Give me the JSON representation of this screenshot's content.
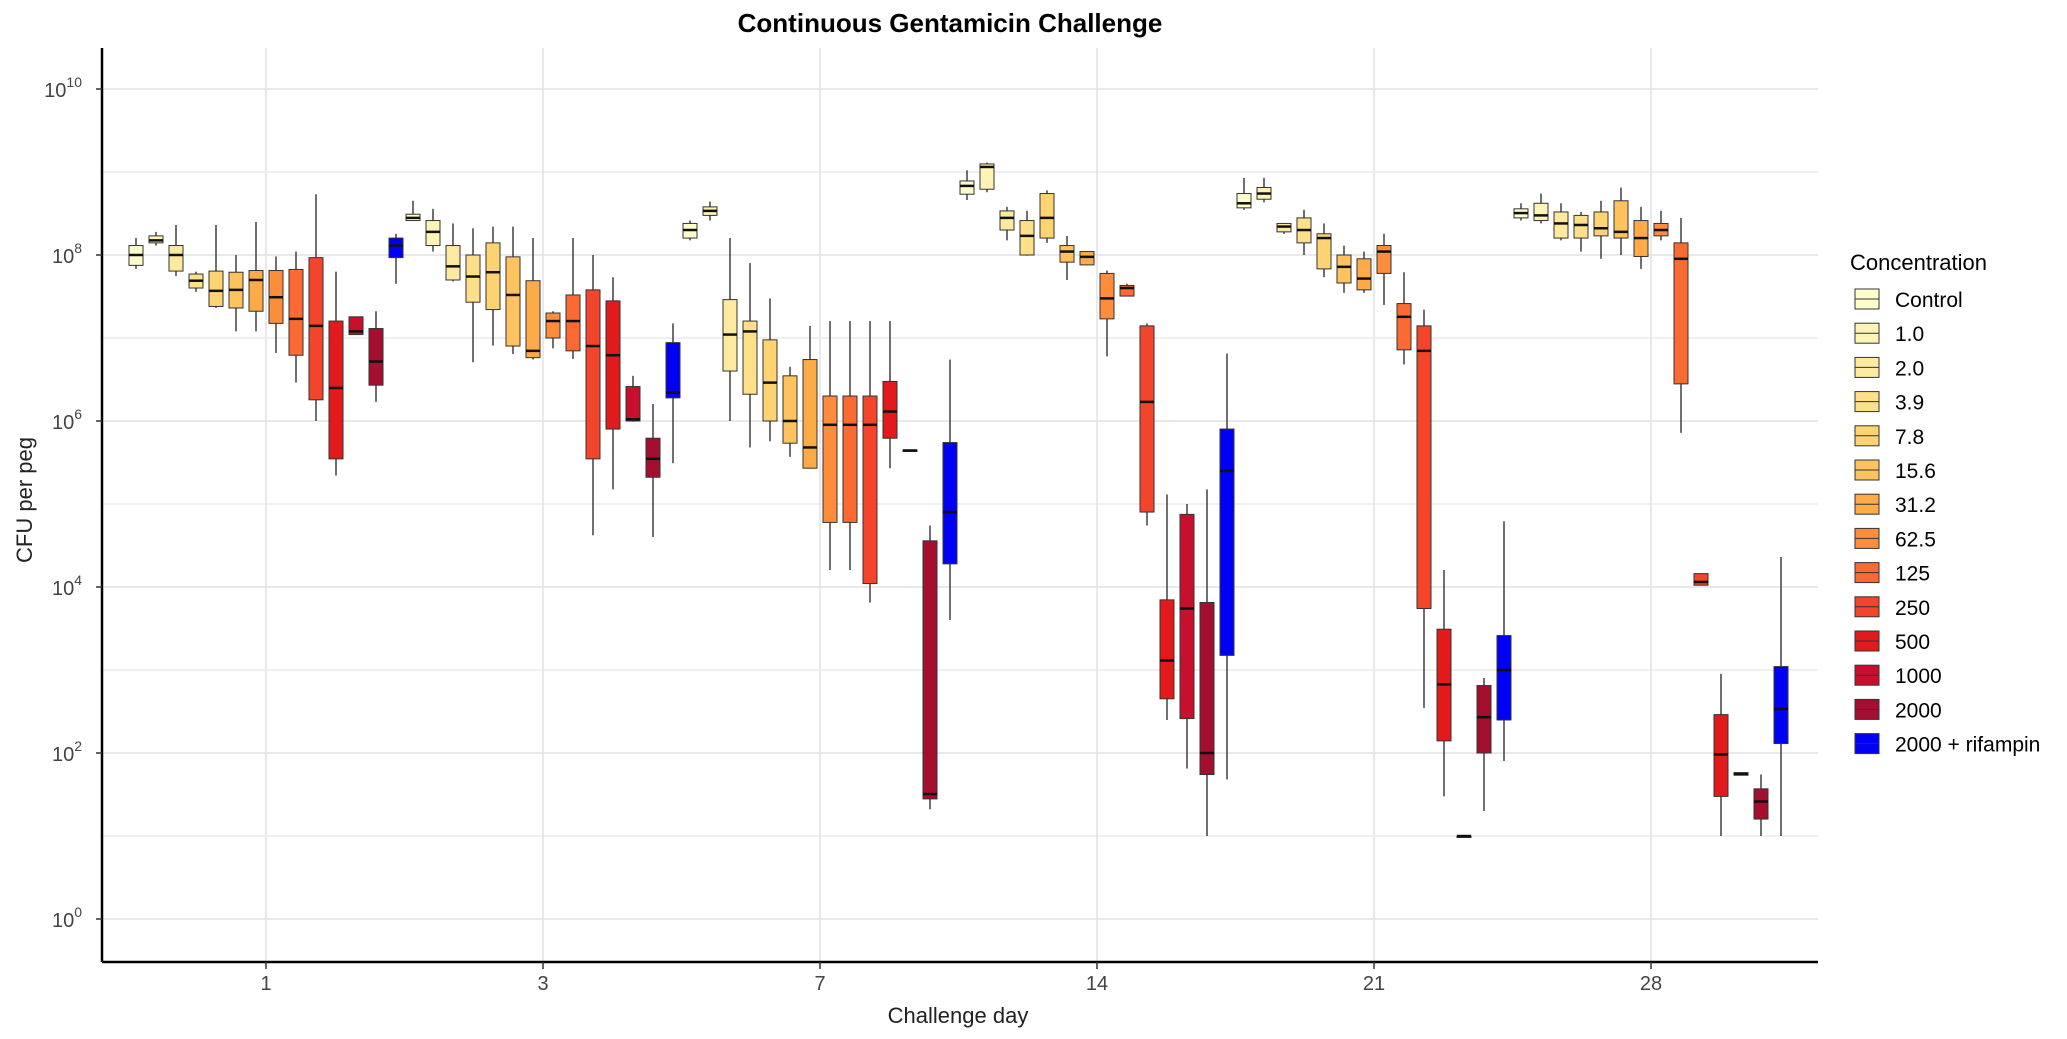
{
  "chart_data": {
    "type": "box",
    "title": "Continuous Gentamicin Challenge",
    "xlabel": "Challenge day",
    "ylabel": "CFU per peg",
    "y_scale": "log10",
    "ylim": [
      1,
      10000000000
    ],
    "y_ticks": [
      {
        "value": 1,
        "base": "10",
        "exp": "0"
      },
      {
        "value": 100,
        "base": "10",
        "exp": "2"
      },
      {
        "value": 10000,
        "base": "10",
        "exp": "4"
      },
      {
        "value": 1000000,
        "base": "10",
        "exp": "6"
      },
      {
        "value": 100000000,
        "base": "10",
        "exp": "8"
      },
      {
        "value": 10000000000,
        "base": "10",
        "exp": "10"
      }
    ],
    "categories": [
      "1",
      "3",
      "7",
      "14",
      "21",
      "28"
    ],
    "legend": {
      "title": "Concentration",
      "position": "right"
    },
    "grid": true,
    "series": [
      {
        "name": "Control",
        "color": "#FFFFCC",
        "boxes": [
          {
            "day": "1",
            "min": 68000000.0,
            "q1": 75000000.0,
            "median": 100000000.0,
            "q3": 130000000.0,
            "max": 160000000.0
          },
          {
            "day": "3",
            "min": 260000000.0,
            "q1": 260000000.0,
            "median": 280000000.0,
            "q3": 310000000.0,
            "max": 450000000.0
          },
          {
            "day": "7",
            "min": 150000000.0,
            "q1": 160000000.0,
            "median": 200000000.0,
            "q3": 240000000.0,
            "max": 260000000.0
          },
          {
            "day": "14",
            "min": 460000000.0,
            "q1": 540000000.0,
            "median": 680000000.0,
            "q3": 780000000.0,
            "max": 1050000000.0
          },
          {
            "day": "21",
            "min": 350000000.0,
            "q1": 370000000.0,
            "median": 420000000.0,
            "q3": 550000000.0,
            "max": 850000000.0
          },
          {
            "day": "28",
            "min": 260000000.0,
            "q1": 280000000.0,
            "median": 320000000.0,
            "q3": 360000000.0,
            "max": 420000000.0
          }
        ]
      },
      {
        "name": "1.0",
        "color": "#FFF3B5",
        "boxes": [
          {
            "day": "1",
            "min": 130000000.0,
            "q1": 140000000.0,
            "median": 150000000.0,
            "q3": 170000000.0,
            "max": 190000000.0
          },
          {
            "day": "3",
            "min": 110000000.0,
            "q1": 130000000.0,
            "median": 190000000.0,
            "q3": 260000000.0,
            "max": 360000000.0
          },
          {
            "day": "7",
            "min": 260000000.0,
            "q1": 300000000.0,
            "median": 340000000.0,
            "q3": 380000000.0,
            "max": 440000000.0
          },
          {
            "day": "14",
            "min": 570000000.0,
            "q1": 620000000.0,
            "median": 1150000000.0,
            "q3": 1250000000.0,
            "max": 1300000000.0
          },
          {
            "day": "21",
            "min": 430000000.0,
            "q1": 470000000.0,
            "median": 550000000.0,
            "q3": 650000000.0,
            "max": 850000000.0
          },
          {
            "day": "28",
            "min": 240000000.0,
            "q1": 260000000.0,
            "median": 300000000.0,
            "q3": 420000000.0,
            "max": 550000000.0
          }
        ]
      },
      {
        "name": "2.0",
        "color": "#FEE9A0",
        "boxes": [
          {
            "day": "1",
            "min": 56000000.0,
            "q1": 64000000.0,
            "median": 100000000.0,
            "q3": 130000000.0,
            "max": 230000000.0
          },
          {
            "day": "3",
            "min": 48000000.0,
            "q1": 50000000.0,
            "median": 73000000.0,
            "q3": 130000000.0,
            "max": 240000000.0
          },
          {
            "day": "7",
            "min": 1000000.0,
            "q1": 4000000.0,
            "median": 11000000.0,
            "q3": 29000000.0,
            "max": 160000000.0
          },
          {
            "day": "14",
            "min": 150000000.0,
            "q1": 200000000.0,
            "median": 280000000.0,
            "q3": 340000000.0,
            "max": 380000000.0
          },
          {
            "day": "21",
            "min": 180000000.0,
            "q1": 190000000.0,
            "median": 220000000.0,
            "q3": 240000000.0,
            "max": 240000000.0
          },
          {
            "day": "28",
            "min": 150000000.0,
            "q1": 160000000.0,
            "median": 240000000.0,
            "q3": 330000000.0,
            "max": 420000000.0
          }
        ]
      },
      {
        "name": "3.9",
        "color": "#FEDF8A",
        "boxes": [
          {
            "day": "1",
            "min": 36000000.0,
            "q1": 40000000.0,
            "median": 49000000.0,
            "q3": 59000000.0,
            "max": 63000000.0
          },
          {
            "day": "3",
            "min": 5100000.0,
            "q1": 27000000.0,
            "median": 55000000.0,
            "q3": 100000000.0,
            "max": 210000000.0
          },
          {
            "day": "7",
            "min": 480000.0,
            "q1": 2100000.0,
            "median": 12000000.0,
            "q3": 16000000.0,
            "max": 80000000.0
          },
          {
            "day": "14",
            "min": 98000000.0,
            "q1": 100000000.0,
            "median": 170000000.0,
            "q3": 260000000.0,
            "max": 340000000.0
          },
          {
            "day": "21",
            "min": 100000000.0,
            "q1": 140000000.0,
            "median": 200000000.0,
            "q3": 280000000.0,
            "max": 350000000.0
          },
          {
            "day": "28",
            "min": 110000000.0,
            "q1": 160000000.0,
            "median": 230000000.0,
            "q3": 300000000.0,
            "max": 330000000.0
          }
        ]
      },
      {
        "name": "7.8",
        "color": "#FED472",
        "boxes": [
          {
            "day": "1",
            "min": 23000000.0,
            "q1": 24000000.0,
            "median": 37000000.0,
            "q3": 64000000.0,
            "max": 230000000.0
          },
          {
            "day": "3",
            "min": 8100000.0,
            "q1": 22000000.0,
            "median": 62000000.0,
            "q3": 140000000.0,
            "max": 220000000.0
          },
          {
            "day": "7",
            "min": 570000.0,
            "q1": 1000000.0,
            "median": 2900000.0,
            "q3": 9500000.0,
            "max": 30000000.0
          },
          {
            "day": "14",
            "min": 140000000.0,
            "q1": 160000000.0,
            "median": 280000000.0,
            "q3": 550000000.0,
            "max": 600000000.0
          },
          {
            "day": "21",
            "min": 54000000.0,
            "q1": 68000000.0,
            "median": 160000000.0,
            "q3": 180000000.0,
            "max": 240000000.0
          },
          {
            "day": "28",
            "min": 90000000.0,
            "q1": 170000000.0,
            "median": 210000000.0,
            "q3": 330000000.0,
            "max": 450000000.0
          }
        ]
      },
      {
        "name": "15.6",
        "color": "#FEC35E",
        "boxes": [
          {
            "day": "1",
            "min": 12000000.0,
            "q1": 23000000.0,
            "median": 38000000.0,
            "q3": 62000000.0,
            "max": 100000000.0
          },
          {
            "day": "3",
            "min": 6400000.0,
            "q1": 8000000.0,
            "median": 33000000.0,
            "q3": 95000000.0,
            "max": 220000000.0
          },
          {
            "day": "7",
            "min": 370000.0,
            "q1": 540000.0,
            "median": 1000000.0,
            "q3": 3500000.0,
            "max": 4500000.0
          },
          {
            "day": "14",
            "min": 50000000.0,
            "q1": 82000000.0,
            "median": 110000000.0,
            "q3": 130000000.0,
            "max": 170000000.0
          },
          {
            "day": "21",
            "min": 35000000.0,
            "q1": 46000000.0,
            "median": 72000000.0,
            "q3": 100000000.0,
            "max": 130000000.0
          },
          {
            "day": "28",
            "min": 100000000.0,
            "q1": 160000000.0,
            "median": 190000000.0,
            "q3": 450000000.0,
            "max": 650000000.0
          }
        ]
      },
      {
        "name": "31.2",
        "color": "#FDAB48",
        "boxes": [
          {
            "day": "1",
            "min": 12000000.0,
            "q1": 21000000.0,
            "median": 50000000.0,
            "q3": 65000000.0,
            "max": 250000000.0
          },
          {
            "day": "3",
            "min": 5500000.0,
            "q1": 5800000.0,
            "median": 7000000.0,
            "q3": 49000000.0,
            "max": 160000000.0
          },
          {
            "day": "7",
            "min": 270000.0,
            "q1": 270000.0,
            "median": 480000.0,
            "q3": 5500000.0,
            "max": 14000000.0
          },
          {
            "day": "14",
            "min": 75000000.0,
            "q1": 76000000.0,
            "median": 95000000.0,
            "q3": 110000000.0,
            "max": 110000000.0
          },
          {
            "day": "21",
            "min": 35000000.0,
            "q1": 38000000.0,
            "median": 52000000.0,
            "q3": 90000000.0,
            "max": 110000000.0
          },
          {
            "day": "28",
            "min": 68000000.0,
            "q1": 96000000.0,
            "median": 160000000.0,
            "q3": 260000000.0,
            "max": 380000000.0
          }
        ]
      },
      {
        "name": "62.5",
        "color": "#FD8D3C",
        "boxes": [
          {
            "day": "1",
            "min": 6600000.0,
            "q1": 15000000.0,
            "median": 31000000.0,
            "q3": 65000000.0,
            "max": 96000000.0
          },
          {
            "day": "3",
            "min": 7500000.0,
            "q1": 10000000.0,
            "median": 16000000.0,
            "q3": 20000000.0,
            "max": 21000000.0
          },
          {
            "day": "7",
            "min": 16000.0,
            "q1": 60000.0,
            "median": 900000.0,
            "q3": 2000000.0,
            "max": 16000000.0
          },
          {
            "day": "14",
            "min": 6000000.0,
            "q1": 17000000.0,
            "median": 30000000.0,
            "q3": 60000000.0,
            "max": 65000000.0
          },
          {
            "day": "21",
            "min": 25000000.0,
            "q1": 60000000.0,
            "median": 110000000.0,
            "q3": 130000000.0,
            "max": 180000000.0
          },
          {
            "day": "28",
            "min": 150000000.0,
            "q1": 170000000.0,
            "median": 200000000.0,
            "q3": 240000000.0,
            "max": 340000000.0
          }
        ]
      },
      {
        "name": "125",
        "color": "#FC6A33",
        "boxes": [
          {
            "day": "1",
            "min": 2900000.0,
            "q1": 6200000.0,
            "median": 17000000.0,
            "q3": 67000000.0,
            "max": 110000000.0
          },
          {
            "day": "3",
            "min": 5600000.0,
            "q1": 7000000.0,
            "median": 16000000.0,
            "q3": 33000000.0,
            "max": 160000000.0
          },
          {
            "day": "7",
            "min": 16000.0,
            "q1": 60000.0,
            "median": 900000.0,
            "q3": 2000000.0,
            "max": 16000000.0
          },
          {
            "day": "14",
            "min": 32000000.0,
            "q1": 32000000.0,
            "median": 40000000.0,
            "q3": 43000000.0,
            "max": 45000000.0
          },
          {
            "day": "21",
            "min": 4800000.0,
            "q1": 7200000.0,
            "median": 18000000.0,
            "q3": 26000000.0,
            "max": 62000000.0
          },
          {
            "day": "28",
            "min": 720000.0,
            "q1": 2800000.0,
            "median": 90000000.0,
            "q3": 140000000.0,
            "max": 280000000.0
          }
        ]
      },
      {
        "name": "250",
        "color": "#F3452B",
        "boxes": [
          {
            "day": "1",
            "min": 1000000.0,
            "q1": 1800000.0,
            "median": 14000000.0,
            "q3": 93000000.0,
            "max": 540000000.0
          },
          {
            "day": "3",
            "min": 42000.0,
            "q1": 350000.0,
            "median": 8000000.0,
            "q3": 38000000.0,
            "max": 100000000.0
          },
          {
            "day": "7",
            "min": 6500.0,
            "q1": 11000.0,
            "median": 900000.0,
            "q3": 2000000.0,
            "max": 16000000.0
          },
          {
            "day": "14",
            "min": 55000.0,
            "q1": 80000.0,
            "median": 1700000.0,
            "q3": 14000000.0,
            "max": 15000000.0
          },
          {
            "day": "21",
            "min": 350.0,
            "q1": 5500.0,
            "median": 7000000.0,
            "q3": 14000000.0,
            "max": 22000000.0
          },
          {
            "day": "28",
            "min": 10500.0,
            "q1": 10500.0,
            "median": 11500.0,
            "q3": 14500.0,
            "max": 14500.0
          }
        ]
      },
      {
        "name": "500",
        "color": "#E31A1C",
        "boxes": [
          {
            "day": "1",
            "min": 220000.0,
            "q1": 350000.0,
            "median": 2500000.0,
            "q3": 16000000.0,
            "max": 63000000.0
          },
          {
            "day": "3",
            "min": 150000.0,
            "q1": 800000.0,
            "median": 6200000.0,
            "q3": 28000000.0,
            "max": 54000000.0
          },
          {
            "day": "7",
            "min": 270000.0,
            "q1": 620000.0,
            "median": 1300000.0,
            "q3": 3000000.0,
            "max": 16000000.0
          },
          {
            "day": "14",
            "min": 250.0,
            "q1": 450.0,
            "median": 1300.0,
            "q3": 7000.0,
            "max": 130000.0
          },
          {
            "day": "21",
            "min": 30.0,
            "q1": 140.0,
            "median": 670.0,
            "q3": 3100.0,
            "max": 16000.0
          },
          {
            "day": "28",
            "min": 10.0,
            "q1": 30.0,
            "median": 96.0,
            "q3": 290.0,
            "max": 900.0
          }
        ]
      },
      {
        "name": "1000",
        "color": "#C8102E",
        "boxes": [
          {
            "day": "1",
            "min": 11000000.0,
            "q1": 11000000.0,
            "median": 12000000.0,
            "q3": 18000000.0,
            "max": 18000000.0
          },
          {
            "day": "3",
            "min": 980000.0,
            "q1": 1000000.0,
            "median": 1050000.0,
            "q3": 2600000.0,
            "max": 3500000.0
          },
          {
            "day": "7",
            "min": 430000.0,
            "q1": 430000.0,
            "median": 440000.0,
            "q3": 450000.0,
            "max": 450000.0
          },
          {
            "day": "14",
            "min": 65.0,
            "q1": 260.0,
            "median": 5500.0,
            "q3": 75000.0,
            "max": 100000.0
          },
          {
            "day": "21",
            "min": 10.0,
            "q1": 10.0,
            "median": 10.0,
            "q3": 10.0,
            "max": 10.0
          },
          {
            "day": "28",
            "min": 54.0,
            "q1": 54.0,
            "median": 56.0,
            "q3": 58.0,
            "max": 58.0
          }
        ]
      },
      {
        "name": "2000",
        "color": "#A50F2F",
        "boxes": [
          {
            "day": "1",
            "min": 1700000.0,
            "q1": 2700000.0,
            "median": 5200000.0,
            "q3": 13000000.0,
            "max": 21000000.0
          },
          {
            "day": "3",
            "min": 40000.0,
            "q1": 210000.0,
            "median": 350000.0,
            "q3": 620000.0,
            "max": 1600000.0
          },
          {
            "day": "7",
            "min": 21.0,
            "q1": 28.0,
            "median": 32.0,
            "q3": 36000.0,
            "max": 55000.0
          },
          {
            "day": "14",
            "min": 10.0,
            "q1": 55.0,
            "median": 100.0,
            "q3": 6500.0,
            "max": 150000.0
          },
          {
            "day": "21",
            "min": 20.0,
            "q1": 100.0,
            "median": 270.0,
            "q3": 650.0,
            "max": 800.0
          },
          {
            "day": "28",
            "min": 10.0,
            "q1": 16.0,
            "median": 26.0,
            "q3": 37.0,
            "max": 55.0
          }
        ]
      },
      {
        "name": "2000 + rifampin",
        "color": "#0000F5",
        "boxes": [
          {
            "day": "1",
            "min": 45000000.0,
            "q1": 93000000.0,
            "median": 130000000.0,
            "q3": 160000000.0,
            "max": 180000000.0
          },
          {
            "day": "3",
            "min": 310000.0,
            "q1": 1900000.0,
            "median": 2200000.0,
            "q3": 8800000.0,
            "max": 15000000.0
          },
          {
            "day": "7",
            "min": 4000.0,
            "q1": 19000.0,
            "median": 80000.0,
            "q3": 550000.0,
            "max": 5500000.0
          },
          {
            "day": "14",
            "min": 48.0,
            "q1": 1500.0,
            "median": 250000.0,
            "q3": 800000.0,
            "max": 6500000.0
          },
          {
            "day": "21",
            "min": 80.0,
            "q1": 250.0,
            "median": 1000.0,
            "q3": 2600.0,
            "max": 62000.0
          },
          {
            "day": "28",
            "min": 10.0,
            "q1": 130.0,
            "median": 340.0,
            "q3": 1100.0,
            "max": 23000.0
          }
        ]
      }
    ]
  }
}
